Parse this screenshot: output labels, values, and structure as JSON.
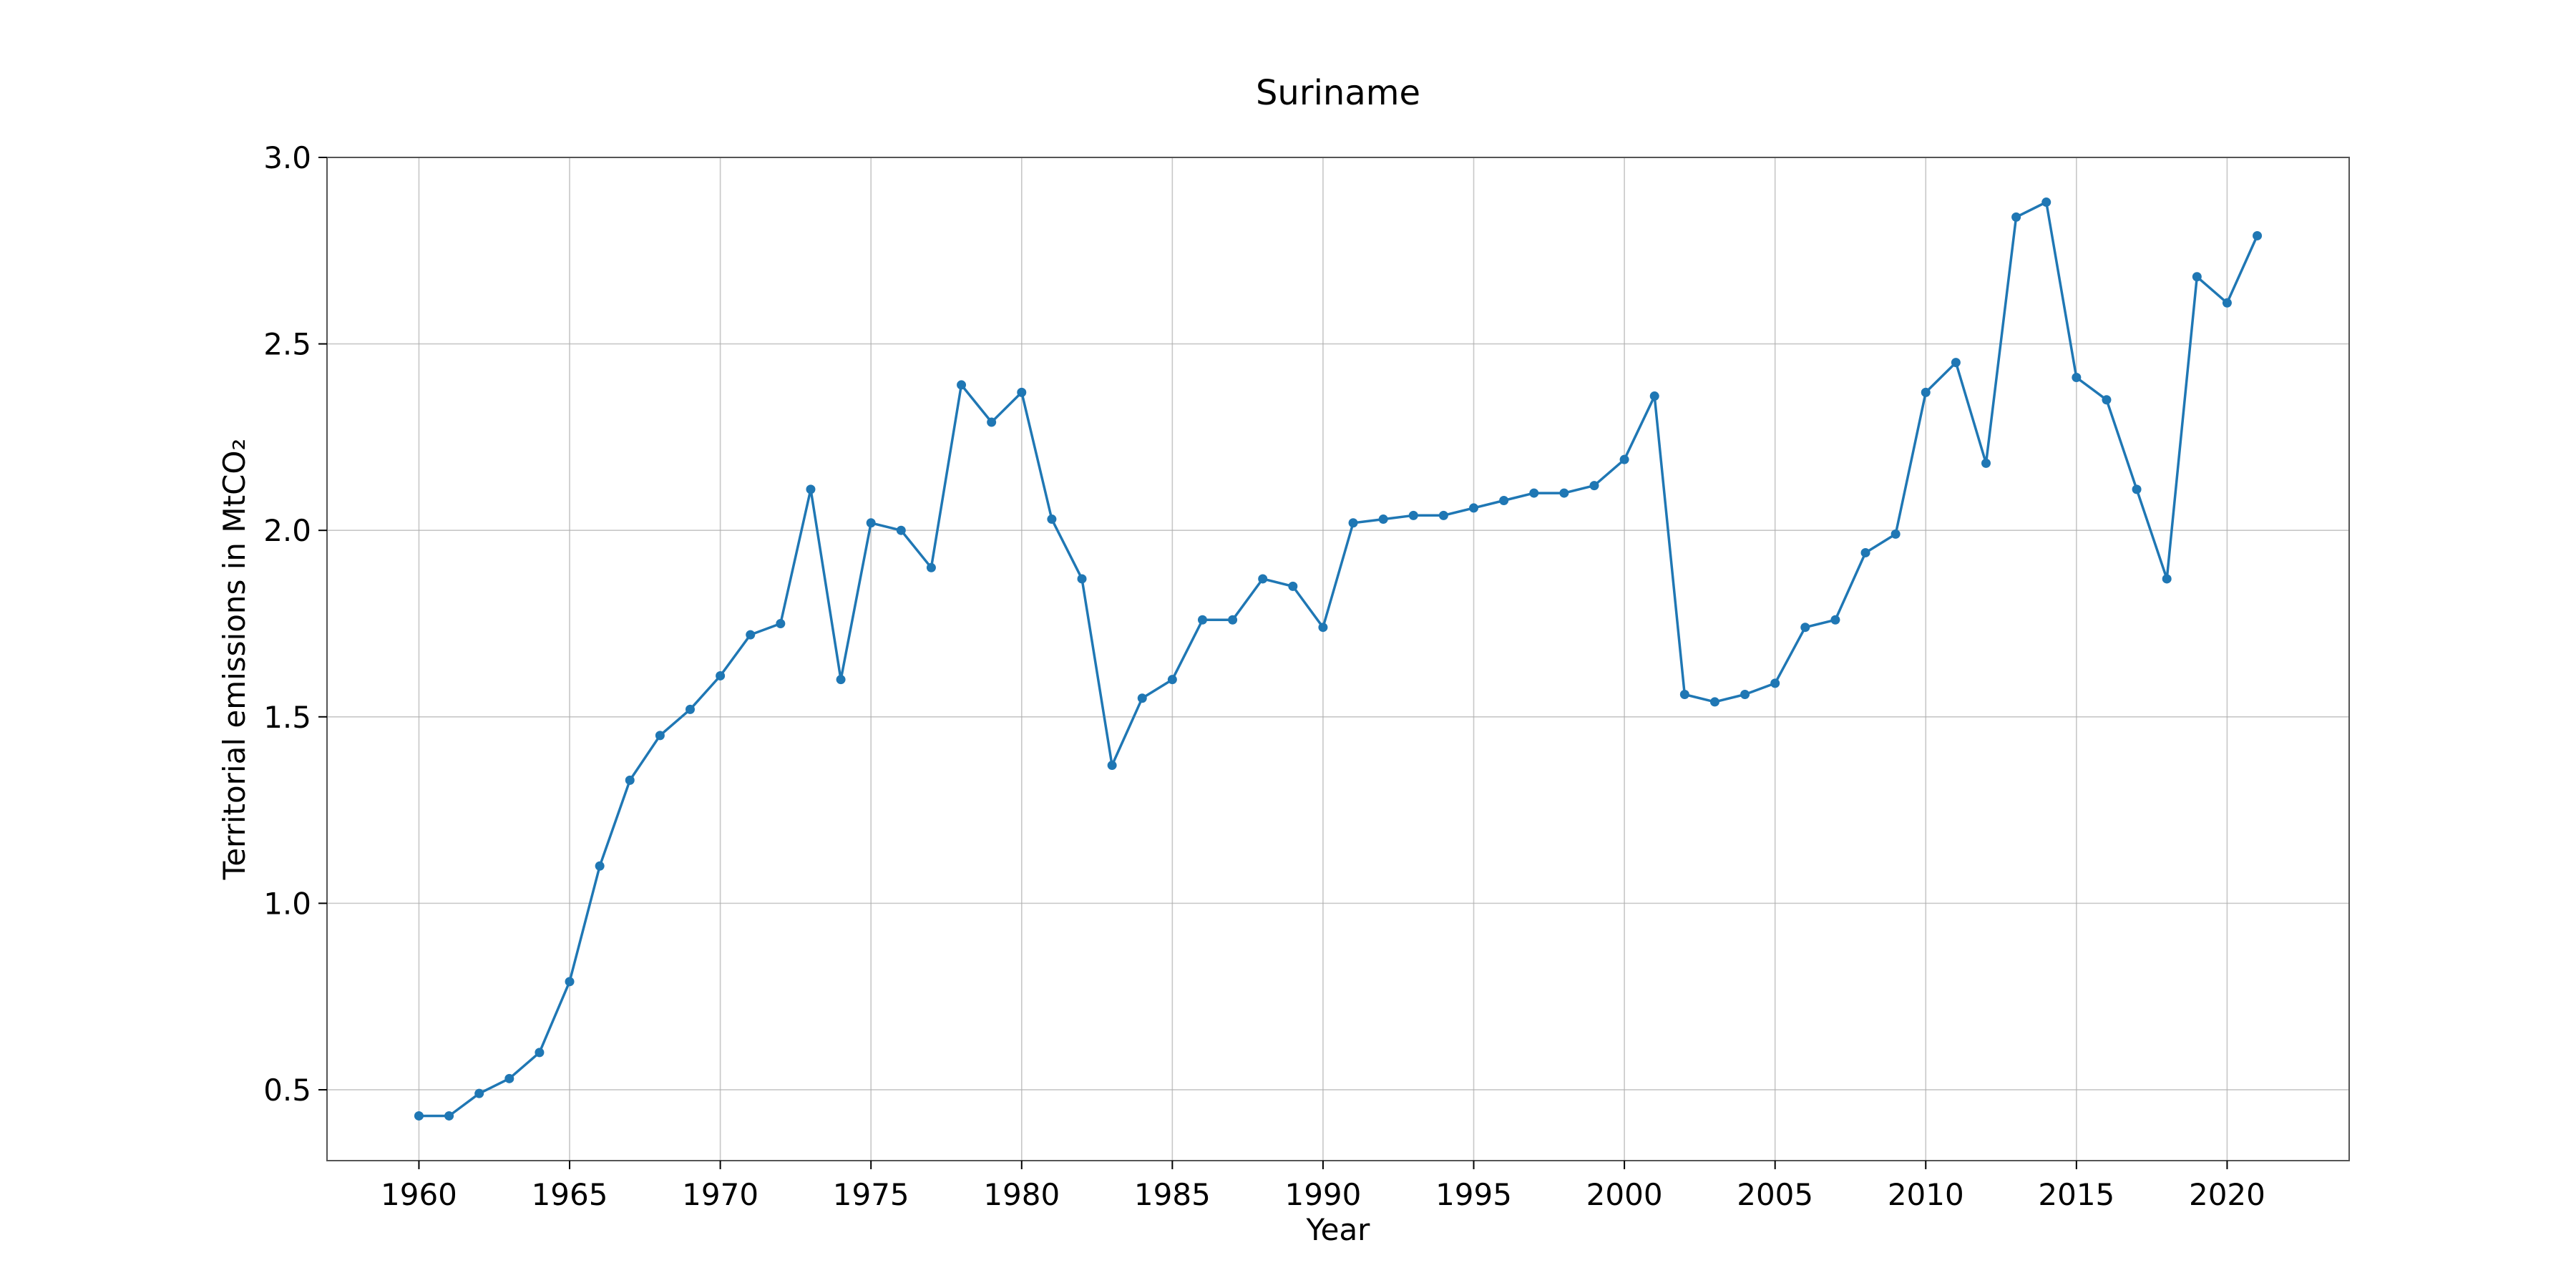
{
  "colors": {
    "series": "#1f77b4"
  },
  "chart_data": {
    "type": "line",
    "title": "Suriname",
    "xlabel": "Year",
    "ylabel": "Territorial emissions in MtCO₂",
    "xlim": [
      1956.95,
      2024.05
    ],
    "ylim": [
      0.31,
      3.0
    ],
    "xticks": [
      1960,
      1965,
      1970,
      1975,
      1980,
      1985,
      1990,
      1995,
      2000,
      2005,
      2010,
      2015,
      2020
    ],
    "yticks": [
      0.5,
      1.0,
      1.5,
      2.0,
      2.5,
      3.0
    ],
    "ytick_labels": [
      "0.5",
      "1.0",
      "1.5",
      "2.0",
      "2.5",
      "3.0"
    ],
    "grid": true,
    "series": [
      {
        "marker": "circle",
        "x": [
          1960,
          1961,
          1962,
          1963,
          1964,
          1965,
          1966,
          1967,
          1968,
          1969,
          1970,
          1971,
          1972,
          1973,
          1974,
          1975,
          1976,
          1977,
          1978,
          1979,
          1980,
          1981,
          1982,
          1983,
          1984,
          1985,
          1986,
          1987,
          1988,
          1989,
          1990,
          1991,
          1992,
          1993,
          1994,
          1995,
          1996,
          1997,
          1998,
          1999,
          2000,
          2001,
          2002,
          2003,
          2004,
          2005,
          2006,
          2007,
          2008,
          2009,
          2010,
          2011,
          2012,
          2013,
          2014,
          2015,
          2016,
          2017,
          2018,
          2019,
          2020,
          2021
        ],
        "y": [
          0.43,
          0.43,
          0.49,
          0.53,
          0.6,
          0.79,
          1.1,
          1.33,
          1.45,
          1.52,
          1.61,
          1.72,
          1.75,
          2.11,
          1.6,
          2.02,
          2.0,
          1.9,
          2.39,
          2.29,
          2.37,
          2.03,
          1.87,
          1.37,
          1.55,
          1.6,
          1.76,
          1.76,
          1.87,
          1.85,
          1.74,
          2.02,
          2.03,
          2.04,
          2.04,
          2.06,
          2.08,
          2.1,
          2.1,
          2.12,
          2.19,
          2.36,
          1.56,
          1.54,
          1.56,
          1.59,
          1.74,
          1.76,
          1.94,
          1.99,
          2.37,
          2.45,
          2.18,
          2.84,
          2.88,
          2.41,
          2.35,
          2.11,
          1.87,
          2.68,
          2.61,
          2.79
        ]
      }
    ]
  }
}
